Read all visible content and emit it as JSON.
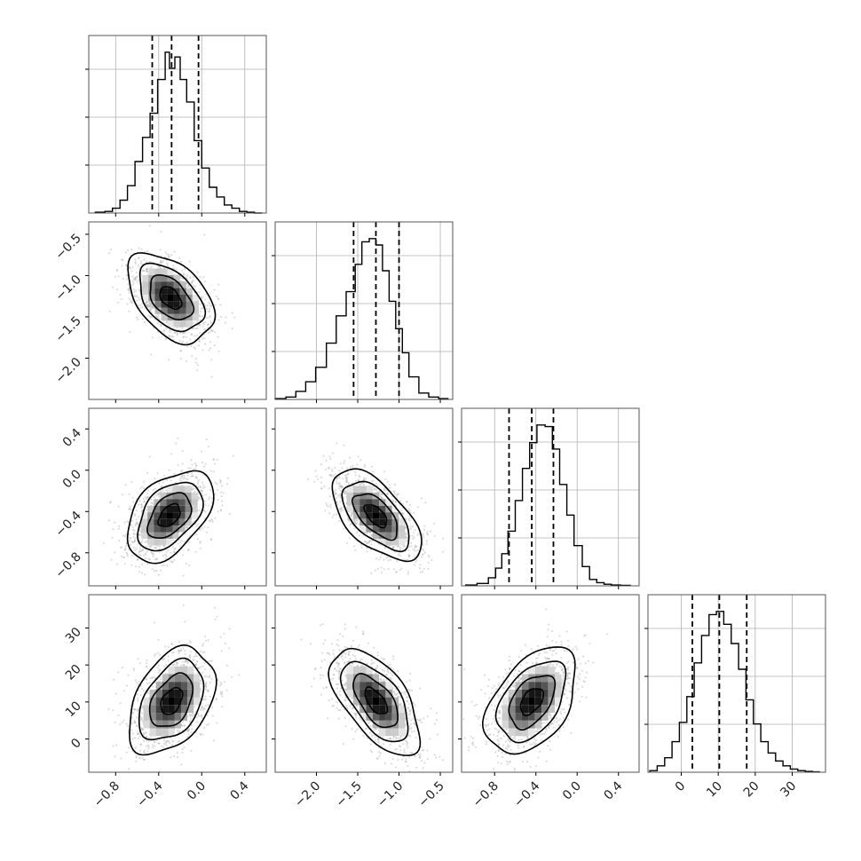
{
  "chart_data": {
    "type": "corner",
    "grid": true,
    "colors": {
      "line": "#000000",
      "frame": "#555555",
      "grid": "#b0b0b0",
      "points": "#9a9a9a"
    },
    "params": [
      {
        "axis_range": [
          -1.05,
          0.6
        ],
        "ticks": [
          -0.8,
          -0.4,
          0.0,
          0.4
        ],
        "tick_labels": [
          "−0.8",
          "−0.4",
          "0.0",
          "0.4"
        ],
        "quantiles": [
          -0.46,
          -0.28,
          -0.03
        ],
        "corr_sign": 1,
        "hist": {
          "edges": [
            -0.99,
            -0.9,
            -0.83,
            -0.76,
            -0.69,
            -0.62,
            -0.55,
            -0.48,
            -0.41,
            -0.34,
            -0.3,
            -0.25,
            -0.2,
            -0.14,
            -0.07,
            0.0,
            0.07,
            0.14,
            0.21,
            0.28,
            0.35,
            0.42,
            0.49,
            0.56
          ],
          "counts": [
            0.5,
            1,
            3,
            8,
            17,
            32,
            47,
            62,
            83,
            100,
            90,
            97,
            83,
            69,
            45,
            28,
            16,
            10,
            5,
            3,
            1,
            0.5,
            0
          ]
        }
      },
      {
        "axis_range": [
          -2.5,
          -0.35
        ],
        "ticks": [
          -2.0,
          -1.5,
          -1.0,
          -0.5
        ],
        "tick_labels": [
          "−2.0",
          "−1.5",
          "−1.0",
          "−0.5"
        ],
        "quantiles": [
          -1.55,
          -1.28,
          -1.0
        ],
        "corr_sign": 1,
        "hist": {
          "edges": [
            -2.5,
            -2.37,
            -2.25,
            -2.13,
            -2.01,
            -1.88,
            -1.76,
            -1.64,
            -1.53,
            -1.45,
            -1.36,
            -1.28,
            -1.2,
            -1.12,
            -1.04,
            -0.96,
            -0.88,
            -0.76,
            -0.64,
            -0.52,
            -0.4
          ],
          "counts": [
            0.5,
            1.5,
            5,
            11,
            20,
            35,
            52,
            67,
            84,
            98,
            100,
            96,
            80,
            61,
            44,
            29,
            14,
            4,
            1.5,
            0.5
          ]
        }
      },
      {
        "axis_range": [
          -1.12,
          0.6
        ],
        "ticks": [
          -0.8,
          -0.4,
          0.0,
          0.4
        ],
        "tick_labels": [
          "−0.8",
          "−0.4",
          "0.0",
          "0.4"
        ],
        "quantiles": [
          -0.66,
          -0.44,
          -0.23
        ],
        "corr_sign": -1,
        "hist": {
          "edges": [
            -1.08,
            -0.97,
            -0.86,
            -0.79,
            -0.73,
            -0.67,
            -0.6,
            -0.53,
            -0.46,
            -0.39,
            -0.31,
            -0.24,
            -0.17,
            -0.1,
            -0.03,
            0.05,
            0.12,
            0.19,
            0.26,
            0.33,
            0.42,
            0.52
          ],
          "counts": [
            0.5,
            1.5,
            5,
            11,
            20,
            34,
            53,
            73,
            89,
            100,
            99,
            85,
            63,
            44,
            25,
            12,
            4,
            2,
            1,
            0.5,
            0.3
          ]
        }
      },
      {
        "axis_range": [
          -9,
          39
        ],
        "ticks": [
          0,
          10,
          20,
          30
        ],
        "tick_labels": [
          "0",
          "10",
          "20",
          "30"
        ],
        "quantiles": [
          3.0,
          10.3,
          17.7
        ],
        "corr_sign": 1,
        "hist": {
          "edges": [
            -8.5,
            -6.5,
            -4.5,
            -2.5,
            -0.5,
            1.5,
            3.5,
            5.5,
            7.5,
            9.5,
            11.5,
            13.5,
            15.5,
            17.5,
            19.5,
            21.5,
            23.5,
            25.5,
            27.5,
            29.5,
            31.5,
            33.5,
            35.5,
            37.5
          ],
          "counts": [
            1,
            4,
            9,
            19,
            31,
            47,
            68,
            85,
            98,
            100,
            92,
            80,
            64,
            45,
            30,
            19,
            12,
            7,
            4,
            2,
            1,
            0.5,
            0.2
          ]
        }
      }
    ],
    "pairs": [
      {
        "row": 1,
        "col": 0,
        "mean": [
          -0.29,
          -1.27
        ],
        "sd": [
          0.2,
          0.27
        ],
        "rho": -0.45
      },
      {
        "row": 2,
        "col": 0,
        "mean": [
          -0.3,
          -0.44
        ],
        "sd": [
          0.2,
          0.22
        ],
        "rho": 0.45
      },
      {
        "row": 2,
        "col": 1,
        "mean": [
          -1.28,
          -0.44
        ],
        "sd": [
          0.27,
          0.22
        ],
        "rho": -0.6
      },
      {
        "row": 3,
        "col": 0,
        "mean": [
          -0.28,
          10.2
        ],
        "sd": [
          0.2,
          7.2
        ],
        "rho": 0.4
      },
      {
        "row": 3,
        "col": 1,
        "mean": [
          -1.28,
          10.2
        ],
        "sd": [
          0.27,
          7.2
        ],
        "rho": -0.6
      },
      {
        "row": 3,
        "col": 2,
        "mean": [
          -0.44,
          10.2
        ],
        "sd": [
          0.22,
          7.2
        ],
        "rho": 0.45
      }
    ]
  }
}
